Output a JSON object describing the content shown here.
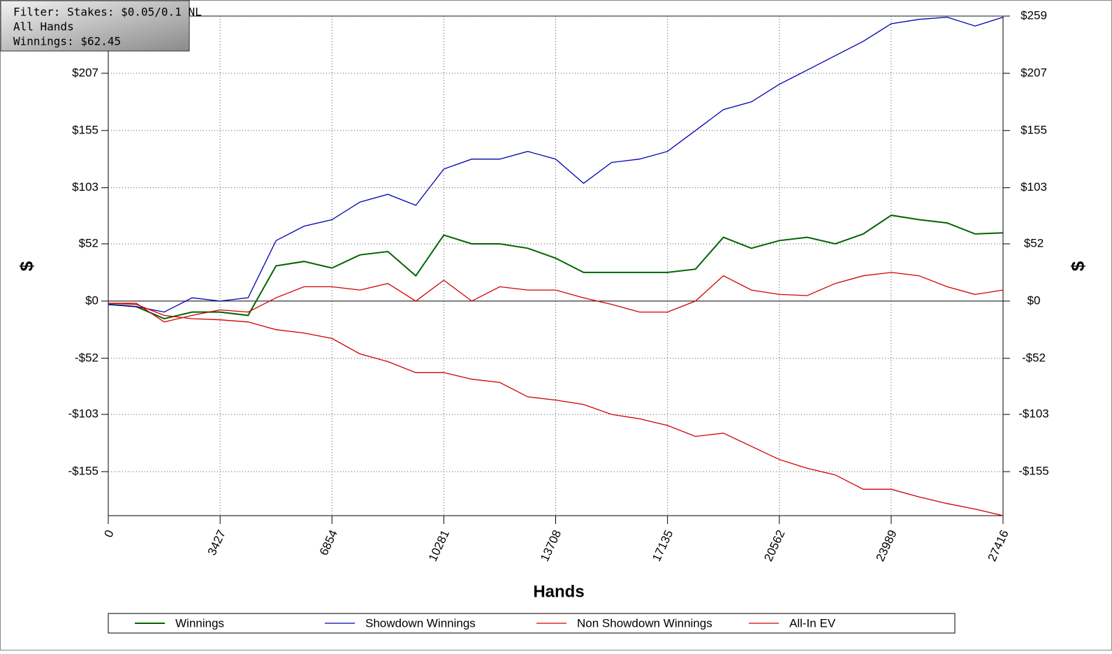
{
  "chart_data": {
    "type": "line",
    "annotations": [
      "Filter: Stakes: $0.05/0.1 NL",
      "All Hands",
      "Winnings: $62.45"
    ],
    "xlabel": "Hands",
    "ylabel": "$",
    "y2label": "$",
    "xlim": [
      0,
      27416
    ],
    "xticks": [
      0,
      3427,
      6854,
      10281,
      13708,
      17135,
      20562,
      23989,
      27416
    ],
    "ylim": [
      -195,
      259
    ],
    "yticks": [
      {
        "value": -155,
        "label": "-$155"
      },
      {
        "value": -103,
        "label": "-$103"
      },
      {
        "value": -52,
        "label": "-$52"
      },
      {
        "value": 0,
        "label": "$0"
      },
      {
        "value": 52,
        "label": "$52"
      },
      {
        "value": 103,
        "label": "$103"
      },
      {
        "value": 155,
        "label": "$155"
      },
      {
        "value": 207,
        "label": "$207"
      },
      {
        "value": 259,
        "label": "$259"
      }
    ],
    "grid": true,
    "x": [
      0,
      857,
      1714,
      2570,
      3427,
      4284,
      5141,
      5997,
      6854,
      7711,
      8568,
      9424,
      10281,
      11138,
      11995,
      12851,
      13708,
      14565,
      15422,
      16278,
      17135,
      17992,
      18849,
      19705,
      20562,
      21419,
      22276,
      23132,
      23989,
      24846,
      25703,
      26559,
      27416
    ],
    "series": [
      {
        "name": "Winnings",
        "color": "#006400",
        "values": [
          -3,
          -5,
          -16,
          -10,
          -10,
          -13,
          32,
          36,
          30,
          42,
          45,
          23,
          60,
          52,
          52,
          48,
          39,
          26,
          26,
          26,
          26,
          29,
          58,
          48,
          55,
          58,
          52,
          61,
          78,
          74,
          71,
          61,
          62
        ]
      },
      {
        "name": "Showdown Winnings",
        "color": "#0000b0",
        "values": [
          -3,
          -5,
          -10,
          3,
          0,
          3,
          55,
          68,
          74,
          90,
          97,
          87,
          120,
          129,
          129,
          136,
          129,
          107,
          126,
          129,
          136,
          155,
          174,
          181,
          197,
          210,
          223,
          236,
          252,
          256,
          258,
          250,
          258
        ]
      },
      {
        "name": "Non Showdown Winnings",
        "color": "#d00000",
        "values": [
          -2,
          -2,
          -19,
          -13,
          -8,
          -10,
          3,
          13,
          13,
          10,
          16,
          0,
          19,
          0,
          13,
          10,
          10,
          3,
          -3,
          -10,
          -10,
          0,
          23,
          10,
          6,
          5,
          16,
          23,
          26,
          23,
          13,
          6,
          10
        ]
      },
      {
        "name": "All-In EV",
        "color": "#d00000",
        "values": [
          -2,
          -3,
          -13,
          -16,
          -17,
          -19,
          -26,
          -29,
          -34,
          -48,
          -55,
          -65,
          -65,
          -71,
          -74,
          -87,
          -90,
          -94,
          -103,
          -107,
          -113,
          -123,
          -120,
          -132,
          -144,
          -152,
          -158,
          -171,
          -171,
          -178,
          -184,
          -189,
          -195
        ]
      }
    ]
  }
}
